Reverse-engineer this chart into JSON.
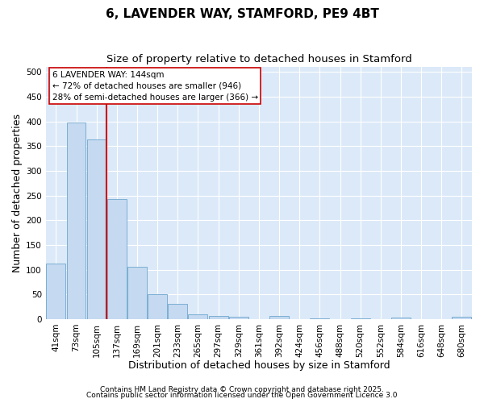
{
  "title": "6, LAVENDER WAY, STAMFORD, PE9 4BT",
  "subtitle": "Size of property relative to detached houses in Stamford",
  "xlabel": "Distribution of detached houses by size in Stamford",
  "ylabel": "Number of detached properties",
  "categories": [
    "41sqm",
    "73sqm",
    "105sqm",
    "137sqm",
    "169sqm",
    "201sqm",
    "233sqm",
    "265sqm",
    "297sqm",
    "329sqm",
    "361sqm",
    "392sqm",
    "424sqm",
    "456sqm",
    "488sqm",
    "520sqm",
    "552sqm",
    "584sqm",
    "616sqm",
    "648sqm",
    "680sqm"
  ],
  "values": [
    113,
    398,
    363,
    243,
    105,
    50,
    31,
    10,
    7,
    5,
    0,
    7,
    0,
    2,
    0,
    1,
    0,
    3,
    0,
    0,
    4
  ],
  "bar_color": "#c5d9f0",
  "bar_edge_color": "#7bafd4",
  "vline_color": "#cc0000",
  "annotation_line1": "6 LAVENDER WAY: 144sqm",
  "annotation_line2": "← 72% of detached houses are smaller (946)",
  "annotation_line3": "28% of semi-detached houses are larger (366) →",
  "annotation_box_color": "#ffffff",
  "annotation_box_edge": "#cc0000",
  "ylim": [
    0,
    510
  ],
  "yticks": [
    0,
    50,
    100,
    150,
    200,
    250,
    300,
    350,
    400,
    450,
    500
  ],
  "bg_color": "#dce9f8",
  "fig_bg_color": "#ffffff",
  "grid_color": "#ffffff",
  "footer_line1": "Contains HM Land Registry data © Crown copyright and database right 2025.",
  "footer_line2": "Contains public sector information licensed under the Open Government Licence 3.0",
  "title_fontsize": 11,
  "subtitle_fontsize": 9.5,
  "axis_label_fontsize": 9,
  "tick_fontsize": 7.5,
  "annotation_fontsize": 7.5,
  "footer_fontsize": 6.5
}
